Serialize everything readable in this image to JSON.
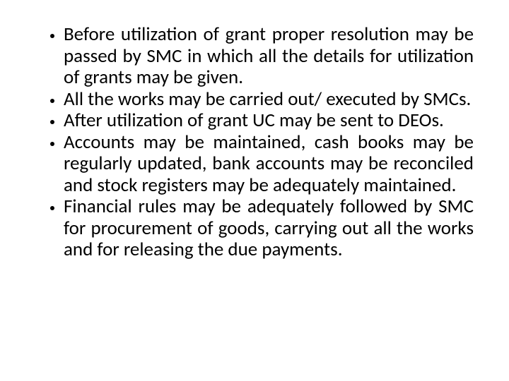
{
  "slide": {
    "background_color": "#ffffff",
    "text_color": "#000000",
    "font_family": "Calibri",
    "font_size_pt": 20,
    "text_align": "justify",
    "bullets": [
      "Before utilization of grant proper resolution may be passed by SMC in which all the details for utilization of grants may be given.",
      "All the works may be carried out/ executed by SMCs.",
      "After utilization of grant UC may be sent to DEOs.",
      "Accounts may be maintained, cash books may be regularly updated, bank accounts may be reconciled and stock registers may be adequately maintained.",
      "Financial rules may be adequately followed by SMC for procurement of goods, carrying out all the works and for releasing the due payments."
    ]
  }
}
